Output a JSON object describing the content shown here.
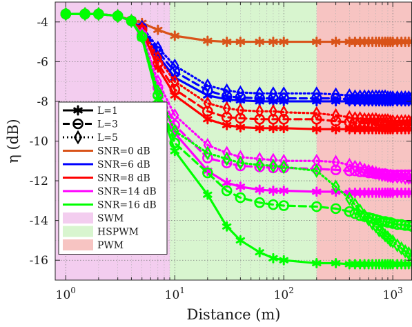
{
  "chart_data": {
    "type": "line",
    "xlabel": "Distance (m)",
    "ylabel": "η (dB)",
    "x_scale": "log",
    "xlim": [
      0.8,
      1500
    ],
    "ylim": [
      -17,
      -3
    ],
    "grid": true,
    "legend_position": "left-middle",
    "x_ticks": [
      {
        "value": 1,
        "base": "10",
        "exp": "0"
      },
      {
        "value": 10,
        "base": "10",
        "exp": "1"
      },
      {
        "value": 100,
        "base": "10",
        "exp": "2"
      },
      {
        "value": 1000,
        "base": "10",
        "exp": "3"
      }
    ],
    "y_ticks": [
      -4,
      -6,
      -8,
      -10,
      -12,
      -14,
      -16
    ],
    "regions": [
      {
        "name": "SWM",
        "x_range": [
          0.8,
          9
        ],
        "color": "#f3cdef"
      },
      {
        "name": "HSPWM",
        "x_range": [
          9,
          200
        ],
        "color": "#d8f5cf"
      },
      {
        "name": "PWM",
        "x_range": [
          200,
          1500
        ],
        "color": "#f7c4c2"
      }
    ],
    "line_styles": [
      {
        "name": "L=1",
        "dash": "solid",
        "marker": "asterisk"
      },
      {
        "name": "L=3",
        "dash": "dashed",
        "marker": "circle"
      },
      {
        "name": "L=5",
        "dash": "dotted",
        "marker": "diamond"
      }
    ],
    "snr_colors": [
      {
        "name": "SNR=0 dB",
        "color": "#d95319"
      },
      {
        "name": "SNR=6 dB",
        "color": "#0000ff"
      },
      {
        "name": "SNR=8 dB",
        "color": "#ff0000"
      },
      {
        "name": "SNR=14 dB",
        "color": "#ff00ff"
      },
      {
        "name": "SNR=16 dB",
        "color": "#00ff00"
      }
    ],
    "x": [
      1,
      1.5,
      2,
      3,
      4,
      5,
      7,
      10,
      20,
      30,
      40,
      60,
      80,
      100,
      200,
      300,
      400,
      450,
      500,
      550,
      600,
      650,
      700,
      750,
      800,
      850,
      900,
      950,
      1000,
      1100,
      1200,
      1300,
      1400,
      1500
    ],
    "series": [
      {
        "snr": "SNR=0 dB",
        "L": "L=1",
        "values": [
          -3.6,
          -3.6,
          -3.6,
          -3.7,
          -3.9,
          -4.05,
          -4.4,
          -4.7,
          -4.95,
          -5.0,
          -5.0,
          -5.0,
          -5.0,
          -5.0,
          -5.0,
          -5.0,
          -5.0,
          -5.0,
          -5.0,
          -5.0,
          -5.0,
          -5.0,
          -5.0,
          -5.0,
          -5.0,
          -5.0,
          -5.0,
          -5.0,
          -5.0,
          -5.0,
          -5.0,
          -5.0,
          -5.0,
          -5.0
        ]
      },
      {
        "snr": "SNR=6 dB",
        "L": "L=5",
        "values": [
          -3.6,
          -3.6,
          -3.6,
          -3.7,
          -3.95,
          -4.25,
          -5.3,
          -6.2,
          -7.2,
          -7.45,
          -7.55,
          -7.6,
          -7.6,
          -7.6,
          -7.6,
          -7.65,
          -7.7,
          -7.75,
          -7.75,
          -7.75,
          -7.75,
          -7.75,
          -7.75,
          -7.75,
          -7.75,
          -7.75,
          -7.8,
          -7.8,
          -7.8,
          -7.8,
          -7.8,
          -7.8,
          -7.8,
          -7.8
        ]
      },
      {
        "snr": "SNR=6 dB",
        "L": "L=3",
        "values": [
          -3.6,
          -3.6,
          -3.6,
          -3.7,
          -3.95,
          -4.3,
          -5.5,
          -6.5,
          -7.45,
          -7.75,
          -7.8,
          -7.85,
          -7.85,
          -7.85,
          -7.85,
          -7.85,
          -7.9,
          -7.9,
          -7.9,
          -7.9,
          -7.9,
          -7.9,
          -7.9,
          -7.9,
          -7.9,
          -7.9,
          -7.9,
          -7.9,
          -7.9,
          -7.9,
          -7.9,
          -7.9,
          -7.9,
          -7.9
        ]
      },
      {
        "snr": "SNR=6 dB",
        "L": "L=1",
        "values": [
          -3.6,
          -3.6,
          -3.6,
          -3.7,
          -3.95,
          -4.35,
          -5.7,
          -6.8,
          -7.7,
          -7.9,
          -7.95,
          -8.0,
          -8.0,
          -8.0,
          -8.0,
          -8.0,
          -8.0,
          -8.0,
          -8.0,
          -8.0,
          -8.0,
          -8.0,
          -8.0,
          -8.0,
          -8.0,
          -8.0,
          -8.0,
          -8.0,
          -8.0,
          -8.0,
          -8.0,
          -8.0,
          -8.0,
          -8.0
        ]
      },
      {
        "snr": "SNR=8 dB",
        "L": "L=5",
        "values": [
          -3.6,
          -3.6,
          -3.6,
          -3.7,
          -3.95,
          -4.35,
          -5.8,
          -7.0,
          -8.1,
          -8.35,
          -8.45,
          -8.5,
          -8.5,
          -8.55,
          -8.6,
          -8.7,
          -8.8,
          -8.85,
          -8.85,
          -8.9,
          -8.9,
          -8.9,
          -8.9,
          -8.95,
          -8.95,
          -8.95,
          -8.95,
          -9.0,
          -9.0,
          -9.0,
          -9.0,
          -9.0,
          -9.0,
          -9.0
        ]
      },
      {
        "snr": "SNR=8 dB",
        "L": "L=3",
        "values": [
          -3.6,
          -3.6,
          -3.6,
          -3.7,
          -3.95,
          -4.4,
          -6.1,
          -7.4,
          -8.5,
          -8.8,
          -8.85,
          -8.9,
          -8.9,
          -8.9,
          -8.9,
          -9.0,
          -9.05,
          -9.1,
          -9.1,
          -9.1,
          -9.1,
          -9.15,
          -9.15,
          -9.15,
          -9.15,
          -9.2,
          -9.2,
          -9.2,
          -9.2,
          -9.2,
          -9.2,
          -9.2,
          -9.2,
          -9.2
        ]
      },
      {
        "snr": "SNR=8 dB",
        "L": "L=1",
        "values": [
          -3.6,
          -3.6,
          -3.6,
          -3.7,
          -3.95,
          -4.45,
          -6.3,
          -7.7,
          -8.9,
          -9.2,
          -9.3,
          -9.35,
          -9.35,
          -9.35,
          -9.4,
          -9.4,
          -9.4,
          -9.4,
          -9.4,
          -9.4,
          -9.4,
          -9.4,
          -9.4,
          -9.4,
          -9.4,
          -9.4,
          -9.4,
          -9.4,
          -9.4,
          -9.4,
          -9.4,
          -9.4,
          -9.4,
          -9.4
        ]
      },
      {
        "snr": "SNR=14 dB",
        "L": "L=5",
        "values": [
          -3.6,
          -3.6,
          -3.6,
          -3.7,
          -3.95,
          -4.6,
          -7.0,
          -8.7,
          -10.2,
          -10.6,
          -10.8,
          -10.9,
          -10.95,
          -11.0,
          -11.0,
          -11.05,
          -11.2,
          -11.3,
          -11.35,
          -11.45,
          -11.5,
          -11.55,
          -11.6,
          -11.65,
          -11.7,
          -11.7,
          -11.75,
          -11.75,
          -11.8,
          -11.8,
          -11.8,
          -11.85,
          -11.85,
          -11.9
        ]
      },
      {
        "snr": "SNR=14 dB",
        "L": "L=3",
        "values": [
          -3.6,
          -3.6,
          -3.6,
          -3.7,
          -3.95,
          -4.65,
          -7.3,
          -9.2,
          -10.85,
          -11.1,
          -11.25,
          -11.3,
          -11.35,
          -11.35,
          -11.4,
          -11.45,
          -11.5,
          -11.5,
          -11.55,
          -11.55,
          -11.6,
          -11.6,
          -11.65,
          -11.65,
          -11.65,
          -11.65,
          -11.7,
          -11.7,
          -11.7,
          -11.7,
          -11.7,
          -11.7,
          -11.7,
          -11.7
        ]
      },
      {
        "snr": "SNR=14 dB",
        "L": "L=1",
        "values": [
          -3.6,
          -3.6,
          -3.6,
          -3.7,
          -3.95,
          -4.7,
          -7.5,
          -9.6,
          -11.5,
          -12.1,
          -12.3,
          -12.45,
          -12.5,
          -12.5,
          -12.55,
          -12.55,
          -12.6,
          -12.6,
          -12.6,
          -12.6,
          -12.6,
          -12.6,
          -12.6,
          -12.6,
          -12.6,
          -12.6,
          -12.6,
          -12.6,
          -12.6,
          -12.6,
          -12.6,
          -12.6,
          -12.6,
          -12.6
        ]
      },
      {
        "snr": "SNR=16 dB",
        "L": "L=5",
        "values": [
          -3.6,
          -3.6,
          -3.6,
          -3.7,
          -3.95,
          -4.7,
          -7.5,
          -9.5,
          -10.6,
          -10.9,
          -11.1,
          -11.2,
          -11.25,
          -11.3,
          -11.5,
          -12.3,
          -12.9,
          -13.2,
          -13.5,
          -13.75,
          -13.95,
          -14.15,
          -14.3,
          -14.5,
          -14.6,
          -14.75,
          -14.85,
          -15.0,
          -15.05,
          -15.25,
          -15.4,
          -15.55,
          -15.65,
          -15.8
        ]
      },
      {
        "snr": "SNR=16 dB",
        "L": "L=3",
        "values": [
          -3.6,
          -3.6,
          -3.6,
          -3.7,
          -3.95,
          -4.75,
          -7.7,
          -10.1,
          -11.6,
          -12.5,
          -12.85,
          -13.1,
          -13.2,
          -13.25,
          -13.3,
          -13.4,
          -13.55,
          -13.65,
          -13.75,
          -13.8,
          -13.85,
          -13.9,
          -13.95,
          -14.0,
          -14.05,
          -14.05,
          -14.1,
          -14.1,
          -14.15,
          -14.2,
          -14.2,
          -14.25,
          -14.25,
          -14.3
        ]
      },
      {
        "snr": "SNR=16 dB",
        "L": "L=1",
        "values": [
          -3.6,
          -3.6,
          -3.6,
          -3.7,
          -3.95,
          -4.8,
          -7.9,
          -10.5,
          -12.7,
          -14.3,
          -15.0,
          -15.6,
          -15.9,
          -16.0,
          -16.15,
          -16.15,
          -16.2,
          -16.2,
          -16.2,
          -16.2,
          -16.2,
          -16.2,
          -16.2,
          -16.2,
          -16.2,
          -16.2,
          -16.2,
          -16.2,
          -16.2,
          -16.2,
          -16.2,
          -16.2,
          -16.2,
          -16.2
        ]
      }
    ]
  }
}
